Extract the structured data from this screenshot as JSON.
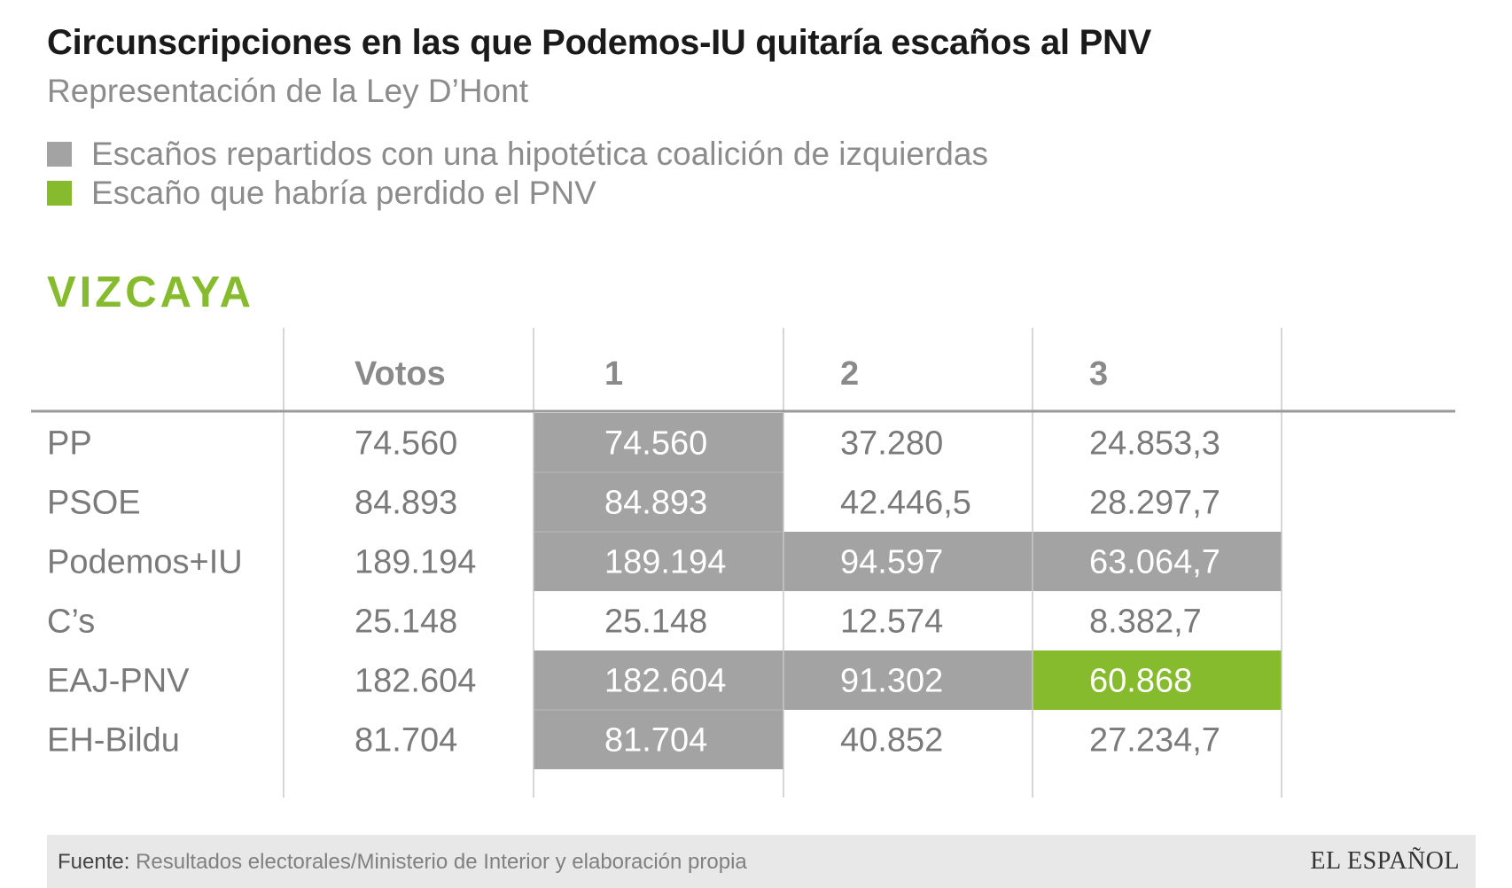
{
  "title": "Circunscripciones en las que Podemos-IU quitaría escaños al PNV",
  "subtitle": "Representación de la Ley D’Hont",
  "legend": [
    {
      "label": "Escaños repartidos con una hipotética coalición de izquierdas",
      "color": "#a3a3a3"
    },
    {
      "label": "Escaño que habría perdido el PNV",
      "color": "#86bb2e"
    }
  ],
  "region": "VIZCAYA",
  "chart_data": {
    "type": "table",
    "columns": [
      "",
      "Votos",
      "1",
      "2",
      "3"
    ],
    "rows": [
      {
        "party": "PP",
        "votes": "74.560",
        "quotients": [
          "74.560",
          "37.280",
          "24.853,3"
        ],
        "highlight": [
          "gray",
          "none",
          "none"
        ]
      },
      {
        "party": "PSOE",
        "votes": "84.893",
        "quotients": [
          "84.893",
          "42.446,5",
          "28.297,7"
        ],
        "highlight": [
          "gray",
          "none",
          "none"
        ]
      },
      {
        "party": "Podemos+IU",
        "votes": "189.194",
        "quotients": [
          "189.194",
          "94.597",
          "63.064,7"
        ],
        "highlight": [
          "gray",
          "gray",
          "gray"
        ]
      },
      {
        "party": "C’s",
        "votes": "25.148",
        "quotients": [
          "25.148",
          "12.574",
          "8.382,7"
        ],
        "highlight": [
          "none",
          "none",
          "none"
        ]
      },
      {
        "party": "EAJ-PNV",
        "votes": "182.604",
        "quotients": [
          "182.604",
          "91.302",
          "60.868"
        ],
        "highlight": [
          "gray",
          "gray",
          "green"
        ]
      },
      {
        "party": "EH-Bildu",
        "votes": "81.704",
        "quotients": [
          "81.704",
          "40.852",
          "27.234,7"
        ],
        "highlight": [
          "gray",
          "none",
          "none"
        ]
      }
    ]
  },
  "colors": {
    "seat_gray": "#a3a3a3",
    "lost_seat_green": "#86bb2e",
    "accent_green": "#86bb2e"
  },
  "footer": {
    "source_label": "Fuente:",
    "source_text": "Resultados electorales/Ministerio de Interior y elaboración propia",
    "brand": "EL ESPAÑOL"
  }
}
